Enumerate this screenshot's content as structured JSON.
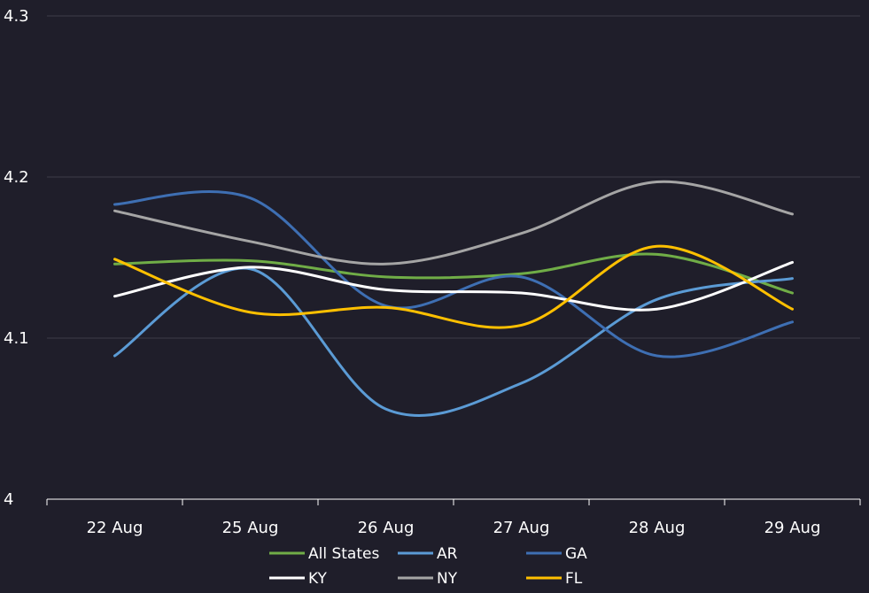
{
  "chart_data": {
    "type": "line",
    "title": "",
    "xlabel": "",
    "ylabel": "",
    "categories": [
      "22 Aug",
      "25 Aug",
      "26 Aug",
      "27 Aug",
      "28 Aug",
      "29 Aug"
    ],
    "yticks": [
      "4",
      "4.1",
      "4.2",
      "4.3"
    ],
    "ylim": [
      4.0,
      4.3
    ],
    "grid": "horizontal",
    "smooth": true,
    "legend_position": "bottom",
    "series": [
      {
        "name": "All States",
        "color": "#70ad47",
        "values": [
          4.146,
          4.148,
          4.138,
          4.14,
          4.152,
          4.128
        ]
      },
      {
        "name": "AR",
        "color": "#5b9bd5",
        "values": [
          4.089,
          4.143,
          4.056,
          4.072,
          4.124,
          4.137
        ]
      },
      {
        "name": "GA",
        "color": "#3e6fb3",
        "values": [
          4.183,
          4.187,
          4.12,
          4.138,
          4.089,
          4.11
        ]
      },
      {
        "name": "KY",
        "color": "#ffffff",
        "values": [
          4.126,
          4.144,
          4.13,
          4.128,
          4.118,
          4.147
        ]
      },
      {
        "name": "NY",
        "color": "#a5a5a5",
        "values": [
          4.179,
          4.16,
          4.146,
          4.165,
          4.197,
          4.177
        ]
      },
      {
        "name": "FL",
        "color": "#ffc000",
        "values": [
          4.149,
          4.116,
          4.119,
          4.108,
          4.157,
          4.118
        ]
      }
    ]
  }
}
